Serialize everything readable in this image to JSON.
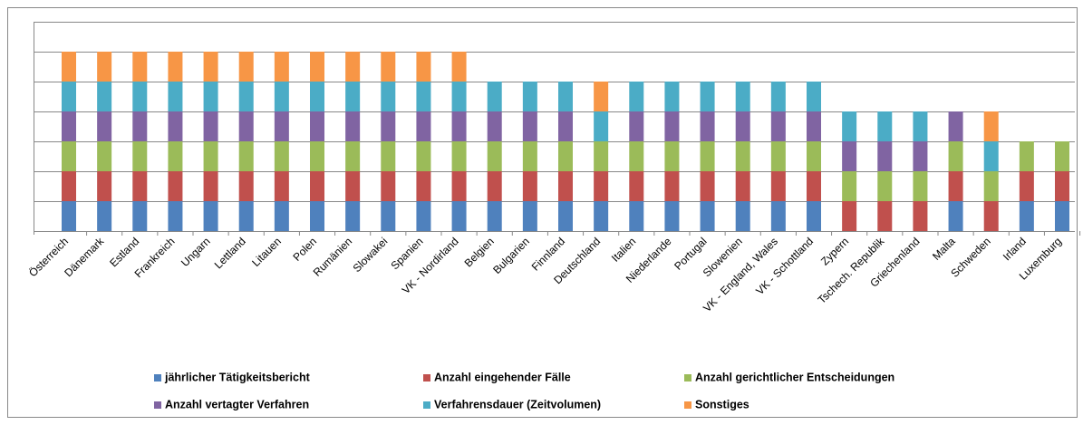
{
  "chart_data": {
    "type": "bar",
    "stacked": true,
    "categories": [
      "Österreich",
      "Dänemark",
      "Estland",
      "Frankreich",
      "Ungarn",
      "Lettland",
      "Litauen",
      "Polen",
      "Rumänien",
      "Slowakei",
      "Spanien",
      "VK - Nordirland",
      "Belgien",
      "Bulgarien",
      "Finnland",
      "Deutschland",
      "Italien",
      "Niederlande",
      "Portugal",
      "Slowenien",
      "VK - England, Wales",
      "VK - Schottland",
      "Zypern",
      "Tschech. Republik",
      "Griechenland",
      "Malta",
      "Schweden",
      "Irland",
      "Luxemburg"
    ],
    "series": [
      {
        "name": "jährlicher Tätigkeitsbericht",
        "color": "#4f81bd",
        "values": [
          1,
          1,
          1,
          1,
          1,
          1,
          1,
          1,
          1,
          1,
          1,
          1,
          1,
          1,
          1,
          1,
          1,
          1,
          1,
          1,
          1,
          1,
          0,
          0,
          0,
          1,
          0,
          1,
          1
        ]
      },
      {
        "name": "Anzahl eingehender Fälle",
        "color": "#c0504d",
        "values": [
          1,
          1,
          1,
          1,
          1,
          1,
          1,
          1,
          1,
          1,
          1,
          1,
          1,
          1,
          1,
          1,
          1,
          1,
          1,
          1,
          1,
          1,
          1,
          1,
          1,
          1,
          1,
          1,
          1
        ]
      },
      {
        "name": "Anzahl gerichtlicher Entscheidungen",
        "color": "#9bbb59",
        "values": [
          1,
          1,
          1,
          1,
          1,
          1,
          1,
          1,
          1,
          1,
          1,
          1,
          1,
          1,
          1,
          1,
          1,
          1,
          1,
          1,
          1,
          1,
          1,
          1,
          1,
          1,
          1,
          1,
          1
        ]
      },
      {
        "name": "Anzahl vertagter Verfahren",
        "color": "#8064a2",
        "values": [
          1,
          1,
          1,
          1,
          1,
          1,
          1,
          1,
          1,
          1,
          1,
          1,
          1,
          1,
          1,
          0,
          1,
          1,
          1,
          1,
          1,
          1,
          1,
          1,
          1,
          1,
          0,
          0,
          0
        ]
      },
      {
        "name": "Verfahrensdauer (Zeitvolumen)",
        "color": "#4bacc6",
        "values": [
          1,
          1,
          1,
          1,
          1,
          1,
          1,
          1,
          1,
          1,
          1,
          1,
          1,
          1,
          1,
          1,
          1,
          1,
          1,
          1,
          1,
          1,
          1,
          1,
          1,
          0,
          1,
          0,
          0
        ]
      },
      {
        "name": "Sonstiges",
        "color": "#f79646",
        "values": [
          1,
          1,
          1,
          1,
          1,
          1,
          1,
          1,
          1,
          1,
          1,
          1,
          0,
          0,
          0,
          1,
          0,
          0,
          0,
          0,
          0,
          0,
          0,
          0,
          0,
          0,
          1,
          0,
          0
        ]
      }
    ],
    "ylim": [
      0,
      7
    ],
    "yticks": [
      0,
      1,
      2,
      3,
      4,
      5,
      6,
      7
    ],
    "grid": true
  }
}
